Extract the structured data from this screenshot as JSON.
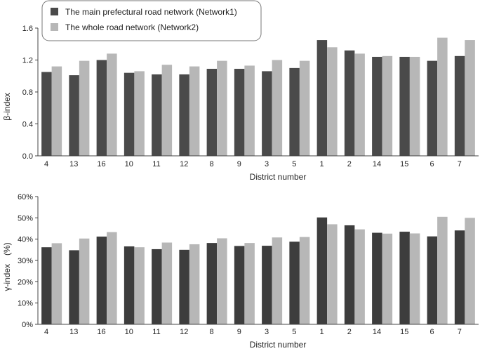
{
  "legend": {
    "items": [
      {
        "label": "The main prefectural road network (Network1)",
        "color": "#4a4a4a"
      },
      {
        "label": "The whole road network (Network2)",
        "color": "#b7b7b7"
      }
    ]
  },
  "chart_data": [
    {
      "type": "bar",
      "categories": [
        "4",
        "13",
        "16",
        "10",
        "11",
        "12",
        "8",
        "9",
        "3",
        "5",
        "1",
        "2",
        "14",
        "15",
        "6",
        "7"
      ],
      "series": [
        {
          "name": "The main prefectural road network (Network1)",
          "color": "#4a4a4a",
          "values": [
            1.05,
            1.01,
            1.2,
            1.04,
            1.02,
            1.02,
            1.09,
            1.09,
            1.06,
            1.1,
            1.45,
            1.32,
            1.24,
            1.24,
            1.19,
            1.25
          ]
        },
        {
          "name": "The whole road network (Network2)",
          "color": "#b7b7b7",
          "values": [
            1.12,
            1.19,
            1.28,
            1.06,
            1.14,
            1.12,
            1.19,
            1.13,
            1.2,
            1.19,
            1.36,
            1.28,
            1.25,
            1.24,
            1.48,
            1.45
          ]
        }
      ],
      "xlabel": "District number",
      "ylabel": "β-index",
      "ylim": [
        0,
        1.6
      ],
      "yticks": [
        "0.0",
        "0.4",
        "0.8",
        "1.2",
        "1.6"
      ],
      "legend": "top-left",
      "grid": false
    },
    {
      "type": "bar",
      "categories": [
        "4",
        "13",
        "16",
        "10",
        "11",
        "12",
        "8",
        "9",
        "3",
        "5",
        "1",
        "2",
        "14",
        "15",
        "6",
        "7"
      ],
      "series": [
        {
          "name": "The main prefectural road network (Network1)",
          "color": "#3d3d3d",
          "values": [
            36.2,
            34.8,
            41.2,
            36.6,
            35.3,
            35.0,
            38.2,
            36.8,
            36.9,
            38.8,
            50.2,
            46.5,
            43.0,
            43.5,
            41.3,
            44.1
          ]
        },
        {
          "name": "The whole road network (Network2)",
          "color": "#b7b7b7",
          "values": [
            38.1,
            40.3,
            43.3,
            36.2,
            38.4,
            37.6,
            40.4,
            38.2,
            40.8,
            41.0,
            47.0,
            44.6,
            42.6,
            42.7,
            50.5,
            50.0
          ]
        }
      ],
      "xlabel": "District number",
      "ylabel": "γ-index　(%)",
      "ylim": [
        0,
        60
      ],
      "yticks": [
        "0%",
        "10%",
        "20%",
        "30%",
        "40%",
        "50%",
        "60%"
      ],
      "grid": false
    }
  ]
}
